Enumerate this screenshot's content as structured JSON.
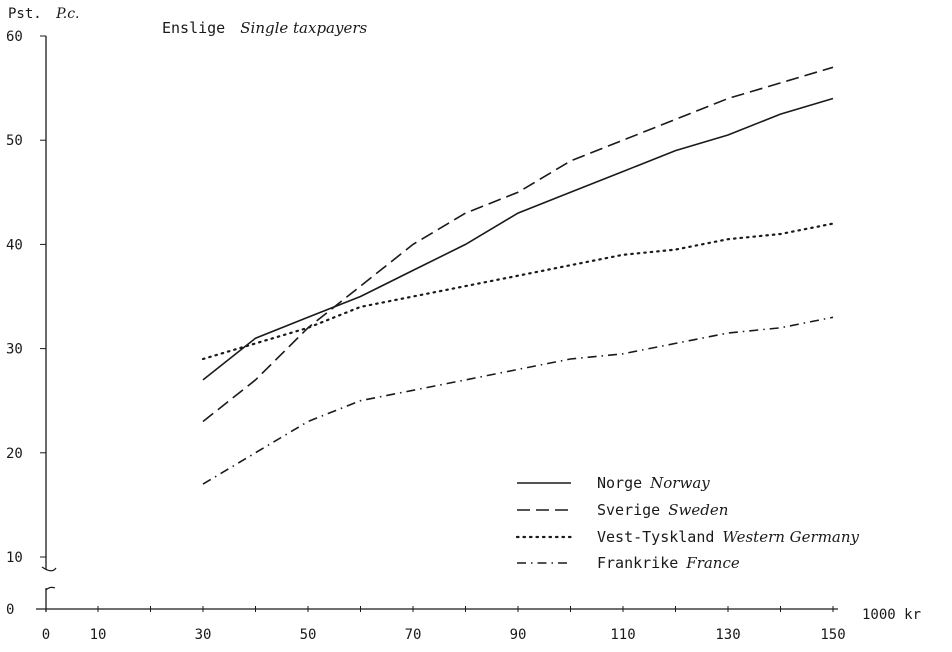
{
  "chart_data": {
    "type": "line",
    "subtitle": "Enslige",
    "subtitle_en": "Single taxpayers",
    "ylabel": "Pst.",
    "ylabel_en": "P.c.",
    "xlabel": "1000 kr",
    "x_ticks": [
      0,
      10,
      30,
      50,
      70,
      90,
      110,
      130,
      150
    ],
    "y_ticks": [
      0,
      10,
      20,
      30,
      40,
      50,
      60
    ],
    "xlim": [
      0,
      150
    ],
    "ylim": [
      0,
      60
    ],
    "axis_break": true,
    "grid": false,
    "legend_position": "bottom-right",
    "x": [
      30,
      40,
      50,
      60,
      70,
      80,
      90,
      100,
      110,
      120,
      130,
      140,
      150
    ],
    "series": [
      {
        "name": "Norge",
        "name_en": "Norway",
        "style": "solid",
        "values": [
          27,
          31,
          33,
          35,
          37.5,
          40,
          43,
          45,
          47,
          49,
          50.5,
          52.5,
          54
        ]
      },
      {
        "name": "Sverige",
        "name_en": "Sweden",
        "style": "dashed",
        "values": [
          23,
          27,
          32,
          36,
          40,
          43,
          45,
          48,
          50,
          52,
          54,
          55.5,
          57
        ]
      },
      {
        "name": "Vest-Tyskland",
        "name_en": "Western Germany",
        "style": "dotted",
        "values": [
          29,
          30.5,
          32,
          34,
          35,
          36,
          37,
          38,
          39,
          39.5,
          40.5,
          41,
          42
        ]
      },
      {
        "name": "Frankrike",
        "name_en": "France",
        "style": "dashdot",
        "values": [
          17,
          20,
          23,
          25,
          26,
          27,
          28,
          29,
          29.5,
          30.5,
          31.5,
          32,
          33
        ]
      }
    ],
    "colors": {
      "ink": "#1a1a1a",
      "background": "#ffffff"
    }
  }
}
